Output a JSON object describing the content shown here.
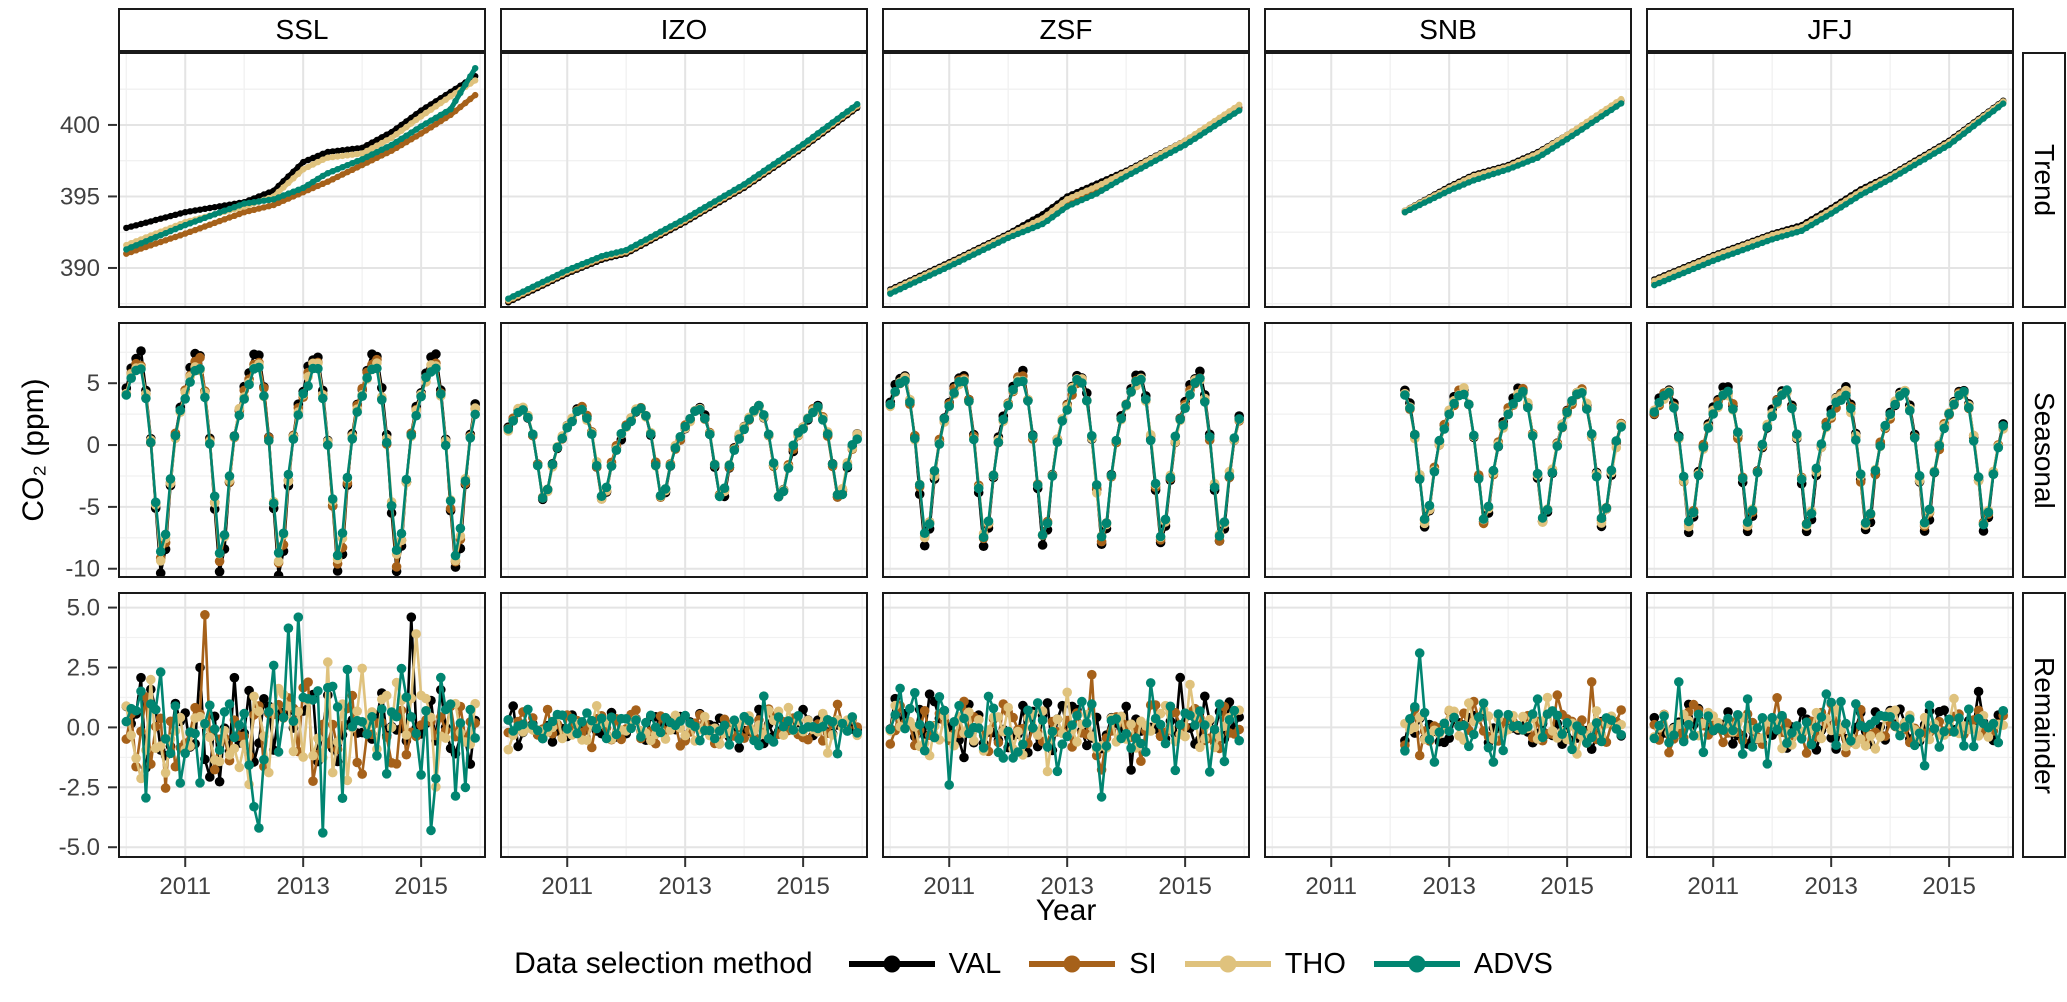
{
  "chart_data": {
    "type": "line",
    "title": "",
    "xlabel": "Year",
    "ylabel": "CO₂ (ppm)",
    "legend": {
      "title": "Data selection method",
      "position": "bottom"
    },
    "x_range": [
      2009.86,
      2016.1
    ],
    "x_ticks": [
      2011,
      2013,
      2015
    ],
    "x_minor": [
      2010,
      2012,
      2014,
      2016
    ],
    "grid": {
      "major_color": "#e4e4e4",
      "minor_color": "#f1f1f1"
    },
    "columns": [
      {
        "label": "SSL"
      },
      {
        "label": "IZO"
      },
      {
        "label": "ZSF"
      },
      {
        "label": "SNB"
      },
      {
        "label": "JFJ"
      }
    ],
    "rows": [
      {
        "label": "Trend",
        "ylim": [
          387.2,
          405.1
        ],
        "ticks": [
          400,
          395,
          390
        ],
        "minor": [
          402.5,
          397.5,
          392.5,
          387.5
        ],
        "tick_format": "int"
      },
      {
        "label": "Seasonal",
        "ylim": [
          -10.75,
          9.95
        ],
        "ticks": [
          5,
          0,
          -5,
          -10
        ],
        "minor": [
          7.5,
          2.5,
          -2.5,
          -7.5
        ],
        "tick_format": "int"
      },
      {
        "label": "Remainder",
        "ylim": [
          -5.45,
          5.65
        ],
        "ticks": [
          5,
          2.5,
          0,
          -2.5,
          -5
        ],
        "minor": [
          3.75,
          1.25,
          -1.25,
          -3.75
        ],
        "tick_format": "1f"
      }
    ],
    "series": [
      {
        "name": "VAL",
        "color": "#000000"
      },
      {
        "name": "SI",
        "color": "#a6611a"
      },
      {
        "name": "THO",
        "color": "#dfc27d"
      },
      {
        "name": "ADVS",
        "color": "#018571"
      }
    ],
    "stations": [
      {
        "name": "SSL",
        "start": 2010.0,
        "end": 2015.95,
        "trend": {
          "t": [
            2010,
            2011,
            2012,
            2012.5,
            2013,
            2013.4,
            2014,
            2014.5,
            2015,
            2015.5,
            2015.95
          ],
          "VAL": [
            392.8,
            393.9,
            394.6,
            395.4,
            397.4,
            398.1,
            398.4,
            399.5,
            401.0,
            402.3,
            403.5
          ],
          "SI": [
            391.0,
            392.4,
            393.9,
            394.4,
            395.3,
            396.0,
            397.2,
            398.2,
            399.4,
            400.7,
            402.2
          ],
          "THO": [
            391.6,
            393.2,
            394.3,
            395.0,
            396.9,
            397.7,
            398.0,
            399.1,
            400.6,
            402.0,
            403.2
          ],
          "ADVS": [
            391.3,
            393.0,
            394.5,
            394.8,
            395.6,
            396.6,
            397.6,
            398.6,
            399.9,
            401.1,
            404.2
          ]
        },
        "seasonal_pattern": [
          4.6,
          6.2,
          7.1,
          7.3,
          4.6,
          0.4,
          -5.2,
          -10.3,
          -8.4,
          -3.2,
          0.8,
          3.1
        ],
        "seasonal_scale": {
          "VAL": 1.0,
          "SI": 0.92,
          "THO": 0.89,
          "ADVS": 0.84
        },
        "seasonal_noise": 0.2,
        "remainder_sd": {
          "VAL": 1.15,
          "SI": 1.0,
          "THO": 1.1,
          "ADVS": 1.5
        },
        "remainder_clip": 4.75,
        "spikes": [
          {
            "m": "SI",
            "t": 2011.33,
            "v": 4.7
          },
          {
            "m": "ADVS",
            "t": 2012.92,
            "v": 4.6
          },
          {
            "m": "ADVS",
            "t": 2013.33,
            "v": -4.4
          },
          {
            "m": "ADVS",
            "t": 2012.25,
            "v": -4.2
          },
          {
            "m": "VAL",
            "t": 2014.83,
            "v": 4.6
          },
          {
            "m": "THO",
            "t": 2014.92,
            "v": 3.9
          },
          {
            "m": "ADVS",
            "t": 2015.17,
            "v": -4.3
          }
        ]
      },
      {
        "name": "IZO",
        "start": 2010.0,
        "end": 2015.95,
        "trend": {
          "t": [
            2010,
            2011,
            2011.6,
            2012,
            2013,
            2014,
            2015,
            2015.95
          ],
          "VAL": [
            387.6,
            389.6,
            390.6,
            391.0,
            393.2,
            395.6,
            398.4,
            401.3
          ],
          "SI": [
            387.7,
            389.7,
            390.7,
            391.1,
            393.3,
            395.7,
            398.5,
            401.4
          ],
          "THO": [
            387.75,
            389.75,
            390.75,
            391.15,
            393.35,
            395.75,
            398.55,
            401.45
          ],
          "ADVS": [
            387.85,
            389.85,
            390.85,
            391.25,
            393.45,
            395.85,
            398.65,
            401.55
          ]
        },
        "seasonal_pattern": [
          1.4,
          2.1,
          2.8,
          3.0,
          2.3,
          0.9,
          -1.6,
          -4.2,
          -3.7,
          -1.7,
          -0.2,
          0.7
        ],
        "seasonal_scale": {
          "VAL": 1.0,
          "SI": 1.0,
          "THO": 1.0,
          "ADVS": 0.98
        },
        "seasonal_noise": 0.12,
        "remainder_sd": {
          "VAL": 0.35,
          "SI": 0.35,
          "THO": 0.35,
          "ADVS": 0.4
        },
        "remainder_clip": 1.3,
        "spikes": [
          {
            "m": "THO",
            "t": 2011.5,
            "v": 0.9
          }
        ]
      },
      {
        "name": "ZSF",
        "start": 2010.0,
        "end": 2015.95,
        "trend": {
          "t": [
            2010,
            2011,
            2012,
            2012.6,
            2013,
            2013.5,
            2014,
            2015,
            2015.95
          ],
          "VAL": [
            388.5,
            390.4,
            392.4,
            393.8,
            395.0,
            395.9,
            396.8,
            398.9,
            401.3
          ],
          "SI": [
            388.3,
            390.2,
            392.2,
            393.3,
            394.5,
            395.4,
            396.5,
            398.7,
            401.2
          ],
          "THO": [
            388.4,
            390.3,
            392.3,
            393.5,
            394.8,
            395.7,
            396.7,
            398.9,
            401.5
          ],
          "ADVS": [
            388.2,
            390.1,
            392.1,
            393.1,
            394.3,
            395.2,
            396.4,
            398.6,
            401.1
          ]
        },
        "seasonal_pattern": [
          3.4,
          4.6,
          5.5,
          5.7,
          3.9,
          0.7,
          -3.6,
          -8.0,
          -6.7,
          -2.6,
          0.4,
          2.2
        ],
        "seasonal_scale": {
          "VAL": 1.0,
          "SI": 0.94,
          "THO": 0.93,
          "ADVS": 0.92
        },
        "seasonal_noise": 0.15,
        "remainder_sd": {
          "VAL": 0.65,
          "SI": 0.6,
          "THO": 0.65,
          "ADVS": 0.8
        },
        "remainder_clip": 2.7,
        "spikes": [
          {
            "m": "ADVS",
            "t": 2013.58,
            "v": -2.9
          },
          {
            "m": "ADVS",
            "t": 2011.0,
            "v": -2.4
          },
          {
            "m": "SI",
            "t": 2013.42,
            "v": 2.2
          }
        ]
      },
      {
        "name": "SNB",
        "start": 2012.25,
        "end": 2015.95,
        "trend": {
          "t": [
            2012.25,
            2013,
            2013.4,
            2014,
            2014.5,
            2015,
            2015.95
          ],
          "VAL": [
            394.0,
            395.7,
            396.5,
            397.2,
            398.1,
            399.3,
            401.8
          ],
          "SI": [
            393.9,
            395.5,
            396.2,
            397.0,
            397.8,
            399.1,
            401.7
          ],
          "THO": [
            394.0,
            395.6,
            396.4,
            397.1,
            398.0,
            399.3,
            401.9
          ],
          "ADVS": [
            393.9,
            395.4,
            396.1,
            396.9,
            397.7,
            399.0,
            401.6
          ]
        },
        "seasonal_pattern": [
          2.7,
          3.6,
          4.3,
          4.5,
          3.2,
          0.8,
          -2.6,
          -6.3,
          -5.3,
          -2.1,
          0.1,
          1.7
        ],
        "seasonal_scale": {
          "VAL": 1.02,
          "SI": 0.97,
          "THO": 0.97,
          "ADVS": 0.95
        },
        "seasonal_noise": 0.15,
        "remainder_sd": {
          "VAL": 0.55,
          "SI": 0.55,
          "THO": 0.55,
          "ADVS": 0.6
        },
        "remainder_clip": 1.45,
        "spikes": [
          {
            "m": "ADVS",
            "t": 2012.5,
            "v": 3.1
          },
          {
            "m": "SI",
            "t": 2015.42,
            "v": 1.9
          }
        ]
      },
      {
        "name": "JFJ",
        "start": 2010.0,
        "end": 2015.95,
        "trend": {
          "t": [
            2010,
            2011,
            2012,
            2012.5,
            2013,
            2013.5,
            2014,
            2015,
            2015.95
          ],
          "VAL": [
            389.2,
            390.9,
            392.4,
            393.0,
            394.2,
            395.5,
            396.5,
            398.9,
            401.8
          ],
          "SI": [
            389.0,
            390.7,
            392.2,
            392.8,
            394.0,
            395.3,
            396.3,
            398.7,
            401.7
          ],
          "THO": [
            389.1,
            390.8,
            392.3,
            392.85,
            394.05,
            395.35,
            396.4,
            398.8,
            401.75
          ],
          "ADVS": [
            388.8,
            390.5,
            392.0,
            392.6,
            393.8,
            395.1,
            396.2,
            398.6,
            401.6
          ]
        },
        "seasonal_pattern": [
          2.6,
          3.5,
          4.2,
          4.4,
          3.1,
          0.7,
          -2.8,
          -6.6,
          -5.6,
          -2.2,
          -0.1,
          1.6
        ],
        "seasonal_scale": {
          "VAL": 1.05,
          "SI": 0.97,
          "THO": 0.97,
          "ADVS": 0.95
        },
        "seasonal_noise": 0.15,
        "remainder_sd": {
          "VAL": 0.45,
          "SI": 0.45,
          "THO": 0.45,
          "ADVS": 0.55
        },
        "remainder_clip": 1.6,
        "spikes": [
          {
            "m": "ADVS",
            "t": 2010.42,
            "v": 1.9
          },
          {
            "m": "VAL",
            "t": 2015.5,
            "v": 1.5
          }
        ]
      }
    ]
  }
}
